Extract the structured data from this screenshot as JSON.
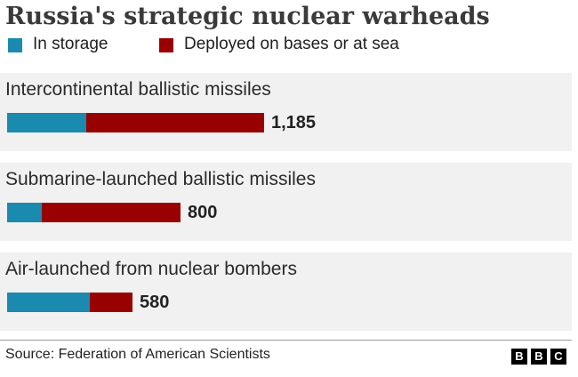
{
  "header": {
    "title": "Russia's strategic nuclear warheads"
  },
  "chart_data": {
    "type": "bar",
    "orientation": "horizontal",
    "stacked": true,
    "title": "Russia's strategic nuclear warheads",
    "legend_position": "top-left",
    "grid": false,
    "categories": [
      "Intercontinental ballistic missiles",
      "Submarine-launched ballistic missiles",
      "Air-launched from nuclear bombers"
    ],
    "series": [
      {
        "name": "In storage",
        "color": "#1a8aaf",
        "values": [
          365,
          160,
          380
        ]
      },
      {
        "name": "Deployed on bases or at sea",
        "color": "#990000",
        "values": [
          820,
          640,
          200
        ]
      }
    ],
    "totals": [
      1185,
      800,
      580
    ],
    "total_labels": [
      "1,185",
      "800",
      "580"
    ],
    "xlim": [
      0,
      1185
    ]
  },
  "footer": {
    "source": "Source: Federation of American Scientists",
    "logo": [
      "B",
      "B",
      "C"
    ]
  }
}
